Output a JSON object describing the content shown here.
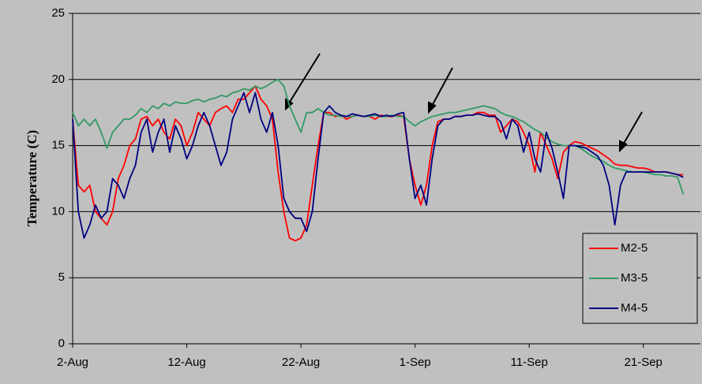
{
  "chart_data": {
    "type": "line",
    "y_label": "Temperature (C)",
    "x": [
      0,
      0.5,
      1,
      1.5,
      2,
      2.5,
      3,
      3.5,
      4,
      4.5,
      5,
      5.5,
      6,
      6.5,
      7,
      7.5,
      8,
      8.5,
      9,
      9.5,
      10,
      10.5,
      11,
      11.5,
      12,
      12.5,
      13,
      13.5,
      14,
      14.5,
      15,
      15.5,
      16,
      16.5,
      17,
      17.5,
      18,
      18.5,
      19,
      19.5,
      20,
      20.5,
      21,
      21.5,
      22,
      22.5,
      23,
      23.5,
      24,
      24.5,
      25,
      25.5,
      26,
      26.5,
      27,
      27.5,
      28,
      28.5,
      29,
      29.5,
      30,
      30.5,
      31,
      31.5,
      32,
      32.5,
      33,
      33.5,
      34,
      34.5,
      35,
      35.5,
      36,
      36.5,
      37,
      37.5,
      38,
      38.5,
      39,
      39.5,
      40,
      40.5,
      41,
      41.5,
      42,
      42.5,
      43,
      43.5,
      44,
      44.5,
      45,
      45.5,
      46,
      46.5,
      47,
      47.5,
      48,
      48.5,
      49,
      49.5,
      50,
      50.5,
      51,
      51.5,
      52,
      52.5,
      53,
      53.5
    ],
    "xlim": [
      0,
      55
    ],
    "xticks": [
      {
        "value": 0,
        "label": "2-Aug"
      },
      {
        "value": 10,
        "label": "12-Aug"
      },
      {
        "value": 20,
        "label": "22-Aug"
      },
      {
        "value": 30,
        "label": "1-Sep"
      },
      {
        "value": 40,
        "label": "11-Sep"
      },
      {
        "value": 50,
        "label": "21-Sep"
      }
    ],
    "ylim": [
      0,
      25
    ],
    "yticks": [
      0,
      5,
      10,
      15,
      20,
      25
    ],
    "grid": true,
    "legend": "lower right",
    "series": [
      {
        "name": "M2-5",
        "color": "#ff0000",
        "values": [
          17,
          12,
          11.5,
          12,
          10,
          9.5,
          9,
          10,
          12.5,
          13.5,
          15,
          15.5,
          17,
          17.2,
          16.5,
          17,
          16,
          15.5,
          17,
          16.5,
          15,
          16,
          17.5,
          17,
          16.5,
          17.5,
          17.8,
          18,
          17.5,
          18.5,
          18.5,
          19,
          19.5,
          18.5,
          18,
          17,
          13,
          10,
          8,
          7.8,
          8,
          9,
          12,
          15,
          17.5,
          17.5,
          17.2,
          17.3,
          17,
          17.2,
          17.3,
          17.2,
          17.2,
          17,
          17.3,
          17.2,
          17.2,
          17.3,
          17.2,
          14,
          12,
          10.5,
          12,
          15,
          16.8,
          17,
          17,
          17.2,
          17.2,
          17.3,
          17.3,
          17.5,
          17.5,
          17.3,
          17.3,
          16,
          16.5,
          17,
          16.8,
          16,
          15,
          13,
          16,
          15,
          14,
          12.5,
          14.5,
          15,
          15.3,
          15.2,
          15,
          14.8,
          14.6,
          14.3,
          14,
          13.6,
          13.5,
          13.5,
          13.4,
          13.3,
          13.3,
          13.2,
          13,
          13,
          13,
          12.9,
          12.8,
          12.8
        ]
      },
      {
        "name": "M3-5",
        "color": "#339966",
        "values": [
          17.5,
          16.5,
          17,
          16.5,
          17,
          16,
          14.8,
          16,
          16.5,
          17,
          17,
          17.3,
          17.8,
          17.5,
          18,
          17.8,
          18.2,
          18,
          18.3,
          18.2,
          18.2,
          18.4,
          18.5,
          18.3,
          18.5,
          18.6,
          18.8,
          18.7,
          19,
          19.1,
          19.3,
          19.2,
          19.5,
          19.3,
          19.5,
          19.8,
          20,
          19.5,
          18,
          17,
          16,
          17.5,
          17.5,
          17.8,
          17.5,
          17.3,
          17.3,
          17.2,
          17.2,
          17.2,
          17.3,
          17.2,
          17.2,
          17.3,
          17.2,
          17.2,
          17.3,
          17.2,
          17.2,
          16.8,
          16.5,
          16.8,
          17,
          17.2,
          17.3,
          17.4,
          17.5,
          17.5,
          17.6,
          17.7,
          17.8,
          17.9,
          18,
          17.9,
          17.8,
          17.5,
          17.3,
          17.2,
          17,
          16.8,
          16.5,
          16.2,
          16,
          15.6,
          15.3,
          15.1,
          15,
          15,
          15,
          14.8,
          14.5,
          14.2,
          14,
          13.8,
          13.5,
          13.3,
          13.2,
          13.1,
          13,
          13,
          13,
          12.9,
          12.8,
          12.8,
          12.7,
          12.7,
          12.6,
          11.3
        ]
      },
      {
        "name": "M4-5",
        "color": "#000080",
        "values": [
          17,
          10,
          8,
          9,
          10.5,
          9.5,
          10,
          12.5,
          12,
          11,
          12.5,
          13.5,
          16,
          17,
          14.5,
          16,
          17,
          14.5,
          16.5,
          15.5,
          14,
          15,
          16.5,
          17.5,
          16.5,
          15,
          13.5,
          14.5,
          17,
          18,
          19,
          17.5,
          19,
          17,
          16,
          17.5,
          15,
          11,
          10,
          9.5,
          9.5,
          8.5,
          10,
          14,
          17.5,
          18,
          17.5,
          17.3,
          17.2,
          17.4,
          17.3,
          17.2,
          17.3,
          17.4,
          17.2,
          17.3,
          17.2,
          17.4,
          17.5,
          14,
          11,
          12,
          10.5,
          14,
          16.5,
          17,
          17,
          17.2,
          17.2,
          17.3,
          17.3,
          17.4,
          17.3,
          17.2,
          17.2,
          16.8,
          15.5,
          17,
          16.5,
          14.5,
          16,
          14,
          13,
          16,
          14.8,
          13,
          11,
          15,
          15,
          14.9,
          14.8,
          14.5,
          14.2,
          13.5,
          12,
          9,
          12,
          13,
          13,
          13,
          13,
          13,
          13,
          13,
          13,
          12.9,
          12.8,
          12.6
        ]
      }
    ]
  }
}
